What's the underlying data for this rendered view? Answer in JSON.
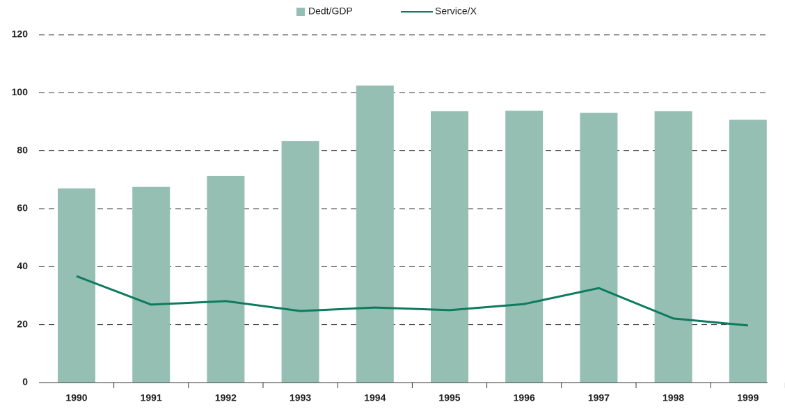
{
  "chart_data": {
    "type": "bar",
    "categories": [
      "1990",
      "1991",
      "1992",
      "1993",
      "1994",
      "1995",
      "1996",
      "1997",
      "1998",
      "1999"
    ],
    "series": [
      {
        "name": "Dedt/GDP",
        "type": "bar",
        "color": "#96bfb3",
        "values": [
          67,
          67.5,
          71.3,
          83.3,
          102.5,
          93.6,
          93.8,
          93.1,
          93.6,
          90.7
        ]
      },
      {
        "name": "Service/X",
        "type": "line",
        "color": "#0e7a5f",
        "values": [
          36.7,
          26.9,
          28.1,
          24.7,
          25.9,
          25,
          27.1,
          32.6,
          22.1,
          19.7
        ]
      }
    ],
    "ylim": [
      0,
      120
    ],
    "yticks": [
      0,
      20,
      40,
      60,
      80,
      100,
      120
    ],
    "grid": true,
    "legend": "top"
  }
}
